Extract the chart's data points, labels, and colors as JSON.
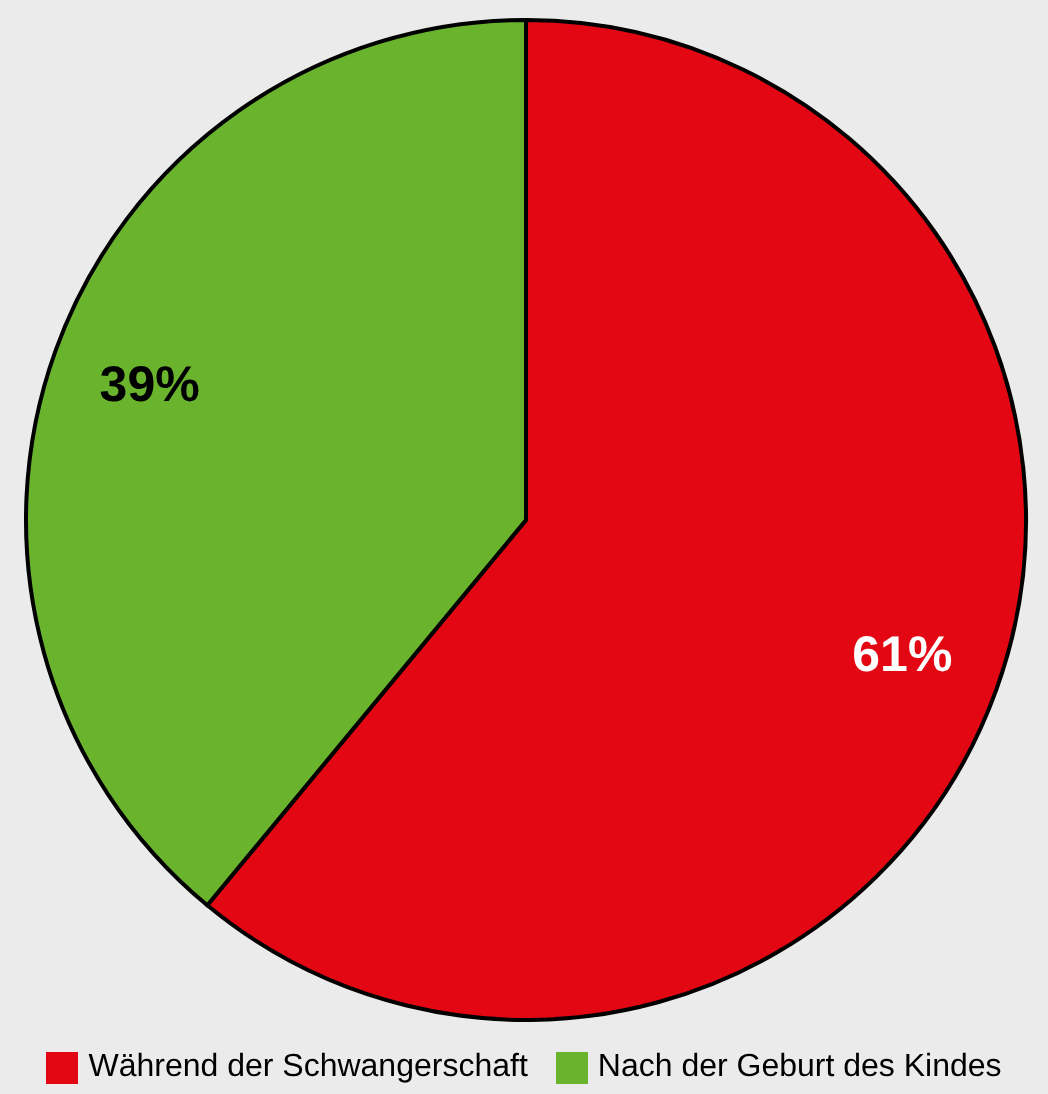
{
  "chart_data": {
    "type": "pie",
    "categories": [
      "Während der Schwangerschaft",
      "Nach der Geburt des Kindes"
    ],
    "values": [
      61,
      39
    ],
    "colors": [
      "#e30613",
      "#6ab42d"
    ],
    "value_labels": [
      "61%",
      "39%"
    ],
    "legend": "bottom"
  }
}
